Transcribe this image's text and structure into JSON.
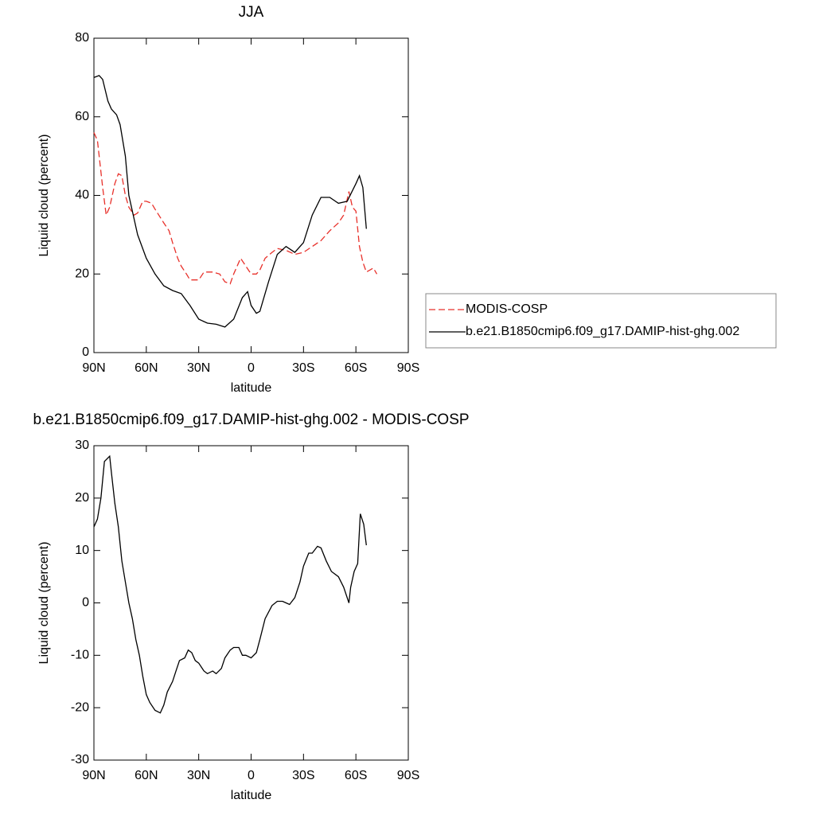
{
  "chart_data": [
    {
      "type": "line",
      "title": "JJA",
      "xlabel": "latitude",
      "ylabel": "Liquid cloud (percent)",
      "xlim": [
        90,
        -90
      ],
      "xticks": [
        {
          "value": 90,
          "label": "90N"
        },
        {
          "value": 60,
          "label": "60N"
        },
        {
          "value": 30,
          "label": "30N"
        },
        0,
        {
          "value": -30,
          "label": "30S"
        },
        {
          "value": -60,
          "label": "60S"
        },
        {
          "value": -90,
          "label": "90S"
        }
      ],
      "ylim": [
        0,
        80
      ],
      "yticks": [
        0,
        20,
        40,
        60,
        80
      ],
      "legend": "right",
      "series": [
        {
          "name": "MODIS-COSP",
          "color": "#e8302a",
          "dash": true,
          "x": [
            90,
            88,
            85,
            83,
            81,
            78,
            76,
            74,
            72,
            70,
            67,
            65,
            62,
            60,
            57,
            55,
            50,
            47,
            45,
            42,
            40,
            37,
            35,
            30,
            27,
            25,
            22,
            18,
            15,
            12,
            10,
            6,
            3,
            0,
            -3,
            -5,
            -8,
            -12,
            -15,
            -20,
            -25,
            -30,
            -35,
            -40,
            -45,
            -50,
            -53,
            -56,
            -58,
            -60,
            -62,
            -64,
            -66,
            -68,
            -70,
            -72
          ],
          "values": [
            56,
            54,
            42,
            35,
            37,
            43,
            45.5,
            45,
            40,
            37,
            35,
            35.5,
            38.5,
            38.5,
            38,
            36.5,
            33,
            31,
            28,
            24,
            22,
            20,
            18.5,
            18.5,
            20.5,
            20.5,
            20.5,
            20,
            18,
            17.5,
            20,
            24,
            22,
            20,
            20,
            21,
            24,
            25.5,
            26.5,
            26,
            25,
            25.5,
            27,
            28.5,
            31,
            33,
            35,
            41,
            37,
            36,
            27,
            23,
            20.5,
            21,
            21.5,
            20
          ]
        },
        {
          "name": "b.e21.B1850cmip6.f09_g17.DAMIP-hist-ghg.002",
          "color": "#000000",
          "dash": false,
          "x": [
            90,
            87,
            85,
            82,
            80,
            77,
            75,
            72,
            70,
            65,
            60,
            55,
            50,
            45,
            40,
            35,
            30,
            25,
            20,
            15,
            10,
            5,
            2,
            0,
            -3,
            -5,
            -10,
            -15,
            -20,
            -25,
            -30,
            -35,
            -40,
            -45,
            -50,
            -55,
            -60,
            -62,
            -64,
            -66
          ],
          "values": [
            70,
            70.5,
            69.5,
            64,
            62,
            60.5,
            58,
            50,
            40,
            30,
            24,
            20,
            17,
            15.8,
            15,
            12,
            8.5,
            7.5,
            7.2,
            6.5,
            8.5,
            14,
            15.5,
            12,
            10,
            10.5,
            18,
            25,
            27,
            25.5,
            28,
            35,
            39.5,
            39.5,
            38,
            38.5,
            43,
            45,
            42,
            31.5
          ]
        }
      ]
    },
    {
      "type": "line",
      "title": "b.e21.B1850cmip6.f09_g17.DAMIP-hist-ghg.002 - MODIS-COSP",
      "xlabel": "latitude",
      "ylabel": "Liquid cloud (percent)",
      "xlim": [
        90,
        -90
      ],
      "xticks": [
        {
          "value": 90,
          "label": "90N"
        },
        {
          "value": 60,
          "label": "60N"
        },
        {
          "value": 30,
          "label": "30N"
        },
        0,
        {
          "value": -30,
          "label": "30S"
        },
        {
          "value": -60,
          "label": "60S"
        },
        {
          "value": -90,
          "label": "90S"
        }
      ],
      "ylim": [
        -30,
        30
      ],
      "yticks": [
        -30,
        -20,
        -10,
        0,
        10,
        20,
        30
      ],
      "color": "#000000",
      "x": [
        90,
        88,
        86,
        84,
        81,
        80,
        78,
        76,
        74,
        72,
        70,
        68,
        66,
        64,
        62,
        60,
        58,
        55,
        52,
        50,
        48,
        45,
        43,
        41,
        38,
        36,
        34,
        32,
        30,
        27,
        25,
        22,
        20,
        17,
        15,
        12,
        10,
        7,
        5,
        3,
        0,
        -3,
        -5,
        -8,
        -12,
        -15,
        -18,
        -20,
        -22,
        -25,
        -28,
        -30,
        -33,
        -35,
        -38,
        -40,
        -43,
        -46,
        -50,
        -53,
        -56,
        -57,
        -59,
        -61,
        -62.5,
        -64.5,
        -66
      ],
      "values": [
        14.5,
        16,
        20,
        27,
        28,
        25,
        19,
        14.5,
        8,
        4,
        0,
        -3,
        -7,
        -10,
        -14,
        -17.5,
        -19,
        -20.5,
        -21,
        -19.5,
        -17,
        -15,
        -13,
        -11,
        -10.5,
        -9,
        -9.5,
        -11,
        -11.5,
        -13,
        -13.5,
        -13,
        -13.5,
        -12.5,
        -10.5,
        -9,
        -8.5,
        -8.5,
        -10,
        -10,
        -10.5,
        -9.5,
        -7,
        -3,
        -0.5,
        0.3,
        0.3,
        0,
        -0.3,
        1,
        4,
        7,
        9.5,
        9.5,
        10.8,
        10.5,
        8,
        6,
        5,
        3,
        0,
        3,
        6,
        7.5,
        17,
        15,
        11
      ]
    }
  ]
}
